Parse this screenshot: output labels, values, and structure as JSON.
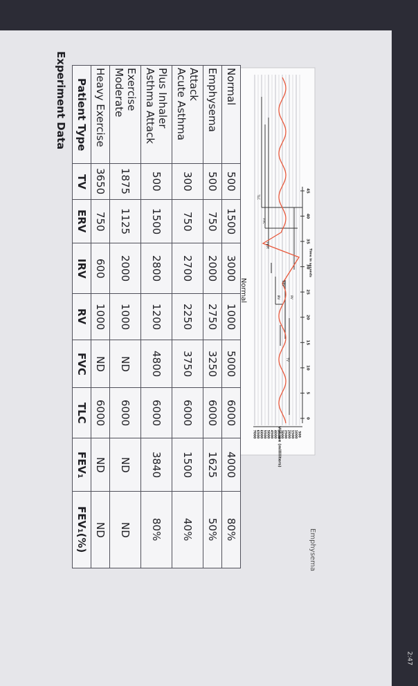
{
  "title": "Experiment Data",
  "table": {
    "header": [
      "Patient Type",
      "TV",
      "ERV",
      "IRV",
      "RV",
      "FVC",
      "TLC",
      "FEV₁",
      "FEV₁(%)"
    ],
    "rows": [
      [
        "Heavy Exercise",
        3650,
        750,
        600,
        1000,
        "ND",
        6000,
        "ND",
        "ND"
      ],
      [
        "Moderate Exercise",
        1875,
        1125,
        2000,
        1000,
        "ND",
        6000,
        "ND",
        "ND"
      ],
      [
        "Asthma Attack Plus Inhaler",
        500,
        1500,
        2800,
        1200,
        4800,
        6000,
        3840,
        "80%"
      ],
      [
        "Acute Asthma Attack",
        300,
        750,
        2700,
        2250,
        3750,
        6000,
        1500,
        "40%"
      ],
      [
        "Emphysema",
        500,
        750,
        2000,
        2750,
        3250,
        6000,
        1625,
        "50%"
      ],
      [
        "Normal",
        500,
        1500,
        3000,
        1000,
        5000,
        6000,
        4000,
        "80%"
      ]
    ]
  },
  "graph": {
    "title": "Normal",
    "volume_label": "Volume (milliliters)",
    "volume_ticks": [
      "7000",
      "6500",
      "6000",
      "5500",
      "5000",
      "4500",
      "4000",
      "3500",
      "3000",
      "2500",
      "2000",
      "1500",
      "1000",
      "500"
    ],
    "time_label": "Time in seconds",
    "time_ticks": [
      "45",
      "40",
      "35",
      "30",
      "25",
      "20",
      "15",
      "10",
      "5",
      "0"
    ],
    "labels": [
      "TLC",
      "FVC",
      "FEV₁",
      "IRV",
      "ERV",
      "TV",
      "RV"
    ],
    "caption": "Emphysema"
  },
  "status": {
    "time": "2:47"
  }
}
